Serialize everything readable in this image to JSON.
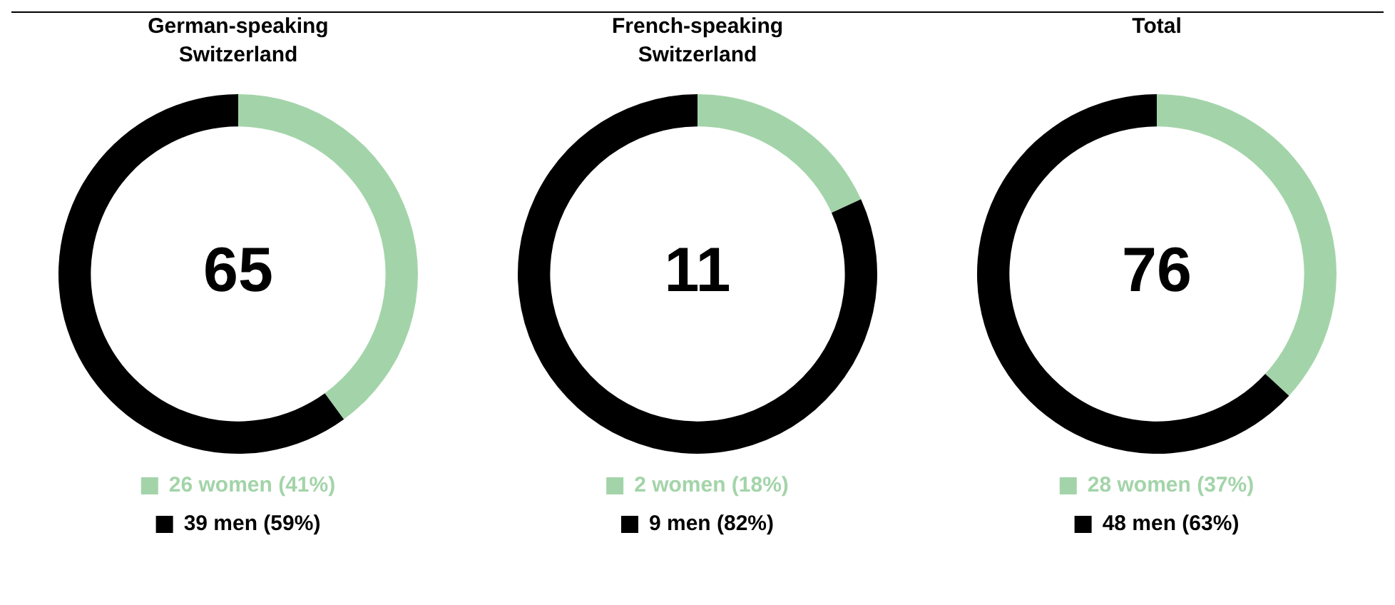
{
  "chart_data": [
    {
      "type": "donut",
      "title": "German-speaking Switzerland",
      "categories": [
        "26 women (41%)",
        "39 men (59%)"
      ],
      "values": [
        26,
        39
      ],
      "colors": [
        "#a3d4a9",
        "#000000"
      ],
      "legend": "bottom",
      "annotations": [
        "65"
      ]
    },
    {
      "type": "donut",
      "title": "French-speaking Switzerland",
      "categories": [
        "2 women (18%)",
        "9 men (82%)"
      ],
      "values": [
        2,
        9
      ],
      "colors": [
        "#a3d4a9",
        "#000000"
      ],
      "legend": "bottom",
      "annotations": [
        "11"
      ]
    },
    {
      "type": "donut",
      "title": "Total",
      "categories": [
        "28 women (37%)",
        "48 men (63%)"
      ],
      "values": [
        28,
        48
      ],
      "colors": [
        "#a3d4a9",
        "#000000"
      ],
      "legend": "bottom",
      "annotations": [
        "76"
      ]
    }
  ]
}
